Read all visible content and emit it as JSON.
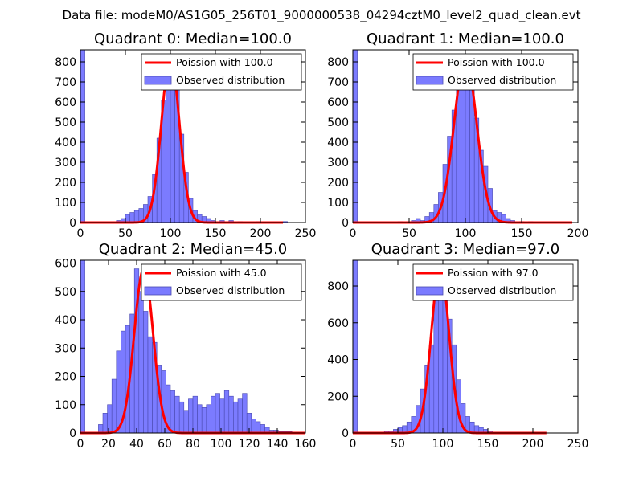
{
  "suptitle": "Data file: modeM0/AS1G05_256T01_9000000538_04294cztM0_level2_quad_clean.evt",
  "colors": {
    "histogram": "#7b7bff",
    "poisson": "#ff0000"
  },
  "chart_data": [
    {
      "type": "bar",
      "title": "Quadrant 0: Median=100.0",
      "xlim": [
        0,
        250
      ],
      "ylim": [
        0,
        860
      ],
      "xticks": [
        "0",
        "50",
        "100",
        "150",
        "200",
        "250"
      ],
      "xtick_values": [
        0,
        50,
        100,
        150,
        200,
        250
      ],
      "yticks": [
        "0",
        "100",
        "200",
        "300",
        "400",
        "500",
        "600",
        "700",
        "800"
      ],
      "ytick_values": [
        0,
        100,
        200,
        300,
        400,
        500,
        600,
        700,
        800
      ],
      "legend": [
        "Poission with 100.0",
        "Observed distribution"
      ],
      "bar_width": 5,
      "bars_x": [
        0,
        40,
        45,
        50,
        55,
        60,
        65,
        70,
        75,
        80,
        85,
        90,
        95,
        100,
        105,
        110,
        115,
        120,
        125,
        130,
        135,
        140,
        145,
        155,
        165,
        175,
        195,
        225
      ],
      "bars_y": [
        860,
        10,
        20,
        40,
        50,
        60,
        70,
        90,
        130,
        240,
        420,
        610,
        720,
        750,
        680,
        440,
        250,
        120,
        60,
        40,
        30,
        20,
        10,
        10,
        10,
        5,
        5,
        5
      ],
      "poisson": {
        "mean": 100.0,
        "peak": 820,
        "sigma": 10,
        "x_range": [
          0,
          225
        ]
      }
    },
    {
      "type": "bar",
      "title": "Quadrant 1: Median=100.0",
      "xlim": [
        0,
        200
      ],
      "ylim": [
        0,
        860
      ],
      "xticks": [
        "0",
        "50",
        "100",
        "150",
        "200"
      ],
      "xtick_values": [
        0,
        50,
        100,
        150,
        200
      ],
      "yticks": [
        "0",
        "100",
        "200",
        "300",
        "400",
        "500",
        "600",
        "700",
        "800"
      ],
      "ytick_values": [
        0,
        100,
        200,
        300,
        400,
        500,
        600,
        700,
        800
      ],
      "legend": [
        "Poission with 100.0",
        "Observed distribution"
      ],
      "bar_width": 4,
      "bars_x": [
        0,
        40,
        52,
        56,
        60,
        64,
        68,
        72,
        76,
        80,
        84,
        88,
        92,
        96,
        100,
        104,
        108,
        112,
        116,
        120,
        124,
        128,
        132,
        136,
        140,
        148,
        156
      ],
      "bars_y": [
        860,
        5,
        10,
        20,
        10,
        30,
        50,
        90,
        150,
        290,
        430,
        560,
        690,
        750,
        790,
        710,
        520,
        360,
        280,
        170,
        60,
        50,
        40,
        20,
        10,
        5,
        5
      ],
      "poisson": {
        "mean": 100.0,
        "peak": 820,
        "sigma": 10,
        "x_range": [
          0,
          195
        ]
      }
    },
    {
      "type": "bar",
      "title": "Quadrant 2: Median=45.0",
      "xlim": [
        0,
        160
      ],
      "ylim": [
        0,
        610
      ],
      "xticks": [
        "0",
        "20",
        "40",
        "60",
        "80",
        "100",
        "120",
        "140",
        "160"
      ],
      "xtick_values": [
        0,
        20,
        40,
        60,
        80,
        100,
        120,
        140,
        160
      ],
      "yticks": [
        "0",
        "100",
        "200",
        "300",
        "400",
        "500",
        "600"
      ],
      "ytick_values": [
        0,
        100,
        200,
        300,
        400,
        500,
        600
      ],
      "legend": [
        "Poission with 45.0",
        "Observed distribution"
      ],
      "bar_width": 3.2,
      "bars_x": [
        0,
        12.8,
        16,
        19.2,
        22.4,
        25.6,
        28.8,
        32,
        35.2,
        38.4,
        41.6,
        44.8,
        48,
        51.2,
        54.4,
        57.6,
        60.8,
        64,
        67.2,
        70.4,
        73.6,
        76.8,
        80,
        83.2,
        86.4,
        89.6,
        92.8,
        96,
        99.2,
        102.4,
        105.6,
        108.8,
        112,
        115.2,
        118.4,
        121.6,
        124.8,
        128,
        131.2,
        134.4,
        137.6,
        140.8,
        144,
        147.2
      ],
      "bars_y": [
        610,
        30,
        70,
        100,
        190,
        290,
        360,
        380,
        420,
        580,
        500,
        430,
        340,
        320,
        240,
        220,
        170,
        150,
        130,
        110,
        80,
        120,
        130,
        100,
        90,
        100,
        130,
        140,
        120,
        150,
        130,
        110,
        120,
        140,
        70,
        50,
        40,
        30,
        20,
        10,
        10,
        5,
        5,
        5
      ],
      "poisson": {
        "mean": 45.0,
        "peak": 580,
        "sigma": 6.7,
        "x_range": [
          0,
          160
        ]
      }
    },
    {
      "type": "bar",
      "title": "Quadrant 3: Median=97.0",
      "xlim": [
        0,
        250
      ],
      "ylim": [
        0,
        940
      ],
      "xticks": [
        "0",
        "50",
        "100",
        "150",
        "200",
        "250"
      ],
      "xtick_values": [
        0,
        50,
        100,
        150,
        200,
        250
      ],
      "yticks": [
        "0",
        "200",
        "400",
        "600",
        "800"
      ],
      "ytick_values": [
        0,
        200,
        400,
        600,
        800
      ],
      "legend": [
        "Poission with 97.0",
        "Observed distribution"
      ],
      "bar_width": 5,
      "bars_x": [
        0,
        30,
        35,
        40,
        45,
        50,
        55,
        60,
        65,
        70,
        75,
        80,
        85,
        90,
        95,
        100,
        105,
        110,
        115,
        120,
        125,
        130,
        135,
        140,
        145,
        150,
        155,
        160,
        170,
        180,
        200
      ],
      "bars_y": [
        940,
        5,
        10,
        10,
        20,
        30,
        40,
        60,
        90,
        150,
        240,
        370,
        480,
        720,
        860,
        810,
        620,
        480,
        290,
        160,
        90,
        60,
        40,
        30,
        20,
        10,
        5,
        5,
        5,
        5,
        5
      ],
      "poisson": {
        "mean": 97.0,
        "peak": 900,
        "sigma": 9.85,
        "x_range": [
          0,
          215
        ]
      }
    }
  ]
}
